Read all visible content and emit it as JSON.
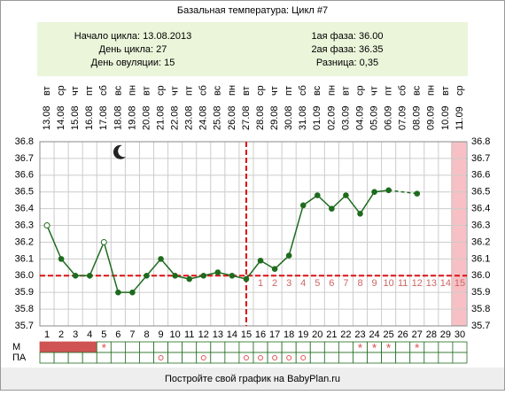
{
  "chart_data": {
    "type": "line",
    "title": "Базальная температура: Цикл #7",
    "info_left": [
      {
        "label": "Начало цикла:",
        "value": "13.08.2013"
      },
      {
        "label": "День цикла:",
        "value": "27"
      },
      {
        "label": "День овуляции:",
        "value": "15"
      }
    ],
    "info_right": [
      {
        "label": "1ая фаза:",
        "value": "36.00"
      },
      {
        "label": "2ая фаза:",
        "value": "36.35"
      },
      {
        "label": "Разница:",
        "value": "0,35"
      }
    ],
    "categories": [
      1,
      2,
      3,
      4,
      5,
      6,
      7,
      8,
      9,
      10,
      11,
      12,
      13,
      14,
      15,
      16,
      17,
      18,
      19,
      20,
      21,
      22,
      23,
      24,
      25,
      26,
      27,
      28,
      29,
      30
    ],
    "dates": [
      "13.08",
      "14.08",
      "15.08",
      "16.08",
      "17.08",
      "18.08",
      "19.08",
      "20.08",
      "21.08",
      "22.08",
      "23.08",
      "24.08",
      "25.08",
      "26.08",
      "27.08",
      "28.08",
      "29.08",
      "30.08",
      "31.08",
      "01.09",
      "02.09",
      "03.09",
      "04.09",
      "05.09",
      "06.09",
      "07.09",
      "08.09",
      "09.09",
      "10.09",
      "11.09"
    ],
    "weekdays": [
      "вт",
      "ср",
      "чт",
      "пт",
      "сб",
      "вс",
      "пн",
      "вт",
      "ср",
      "чт",
      "пт",
      "сб",
      "вс",
      "пн",
      "вт",
      "ср",
      "чт",
      "пт",
      "сб",
      "вс",
      "пн",
      "вт",
      "ср",
      "чт",
      "пт",
      "сб",
      "вс",
      "пн",
      "вт",
      "ср"
    ],
    "series": [
      {
        "color": "#1e6b1e",
        "values": [
          36.3,
          36.1,
          36.0,
          36.0,
          36.2,
          35.9,
          35.9,
          36.0,
          36.1,
          36.0,
          35.98,
          36.0,
          36.02,
          36.0,
          35.98,
          36.09,
          36.04,
          36.12,
          36.42,
          36.48,
          36.4,
          36.48,
          36.37,
          36.5,
          36.51,
          null,
          36.49,
          null,
          null,
          null
        ],
        "point_styles": [
          "open",
          "filled",
          "filled",
          "filled",
          "open",
          "filled",
          "filled",
          "filled",
          "filled",
          "filled",
          "filled",
          "filled",
          "filled",
          "filled",
          "filled",
          "filled",
          "filled",
          "filled",
          "filled",
          "filled",
          "filled",
          "filled",
          "filled",
          "filled",
          "filled",
          null,
          "filled",
          null,
          null,
          null
        ]
      }
    ],
    "ylim": [
      35.7,
      36.8
    ],
    "yticks": [
      35.7,
      35.8,
      35.9,
      {
        "value": 36,
        "label": "36.0"
      },
      36.1,
      36.2,
      36.3,
      36.4,
      36.5,
      36.6,
      36.7,
      36.8
    ],
    "coverline": 36,
    "ovulation_day": 15,
    "line_color": "#d11",
    "post_ovulation_days": [
      1,
      2,
      3,
      4,
      5,
      6,
      7,
      8,
      9,
      10,
      11,
      12,
      13,
      14,
      15
    ],
    "row_labels": [
      "М",
      "ПА"
    ],
    "m_row": [
      "bleed",
      "bleed",
      "bleed",
      "bleed",
      "*",
      null,
      null,
      null,
      null,
      null,
      null,
      null,
      null,
      null,
      null,
      null,
      null,
      null,
      null,
      null,
      null,
      null,
      "*",
      "*",
      "*",
      null,
      "*",
      null,
      null,
      null
    ],
    "pa_row": [
      null,
      null,
      null,
      null,
      null,
      null,
      null,
      null,
      "o",
      null,
      null,
      "o",
      null,
      null,
      "o",
      "o",
      "o",
      "o",
      "o",
      null,
      null,
      null,
      null,
      null,
      null,
      null,
      null,
      null,
      null,
      null
    ],
    "footer": "Постройте свой график на BabyPlan.ru"
  }
}
